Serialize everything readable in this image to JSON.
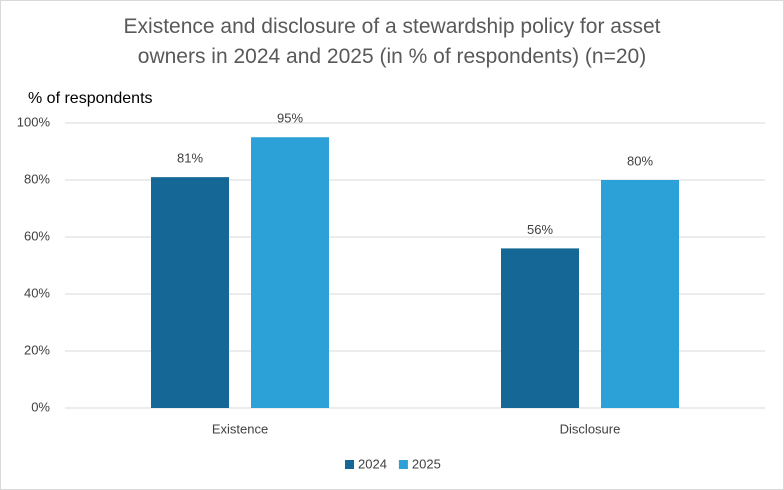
{
  "chart_data": {
    "type": "bar",
    "title": "Existence and disclosure of a stewardship policy for asset owners in 2024 and 2025 (in % of respondents) (n=20)",
    "y_label": "% of respondents",
    "categories": [
      "Existence",
      "Disclosure"
    ],
    "series": [
      {
        "name": "2024",
        "color": "#156895",
        "values": [
          81,
          56
        ],
        "value_labels": [
          "81%",
          "56%"
        ]
      },
      {
        "name": "2025",
        "color": "#2ca1d8",
        "values": [
          95,
          80
        ],
        "value_labels": [
          "95%",
          "80%"
        ]
      }
    ],
    "ylim": [
      0,
      100
    ],
    "yticks": [
      {
        "value": 0,
        "label": "0%"
      },
      {
        "value": 20,
        "label": "20%"
      },
      {
        "value": 40,
        "label": "40%"
      },
      {
        "value": 60,
        "label": "60%"
      },
      {
        "value": 80,
        "label": "80%"
      },
      {
        "value": 100,
        "label": "100%"
      }
    ],
    "grid": true,
    "legend": "bottom"
  }
}
